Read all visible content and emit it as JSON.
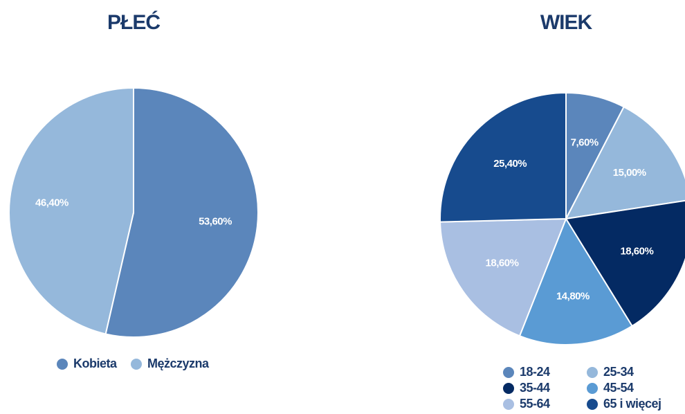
{
  "chart_data": [
    {
      "type": "pie",
      "title": "PŁEĆ",
      "categories": [
        "Kobieta",
        "Mężczyzna"
      ],
      "values": [
        53.6,
        46.4
      ],
      "value_labels": [
        "53,60%",
        "46,40%"
      ],
      "colors": [
        "#5b86bb",
        "#95b8db"
      ]
    },
    {
      "type": "pie",
      "title": "WIEK",
      "categories": [
        "18-24",
        "25-34",
        "35-44",
        "45-54",
        "55-64",
        "65 i więcej"
      ],
      "values": [
        7.6,
        15.0,
        18.6,
        14.8,
        18.6,
        25.4
      ],
      "value_labels": [
        "7,60%",
        "15,00%",
        "18,60%",
        "14,80%",
        "18,60%",
        "25,40%"
      ],
      "colors": [
        "#5b86bb",
        "#95b8db",
        "#042a63",
        "#5a9bd4",
        "#a9bfe2",
        "#174b8e"
      ]
    }
  ]
}
